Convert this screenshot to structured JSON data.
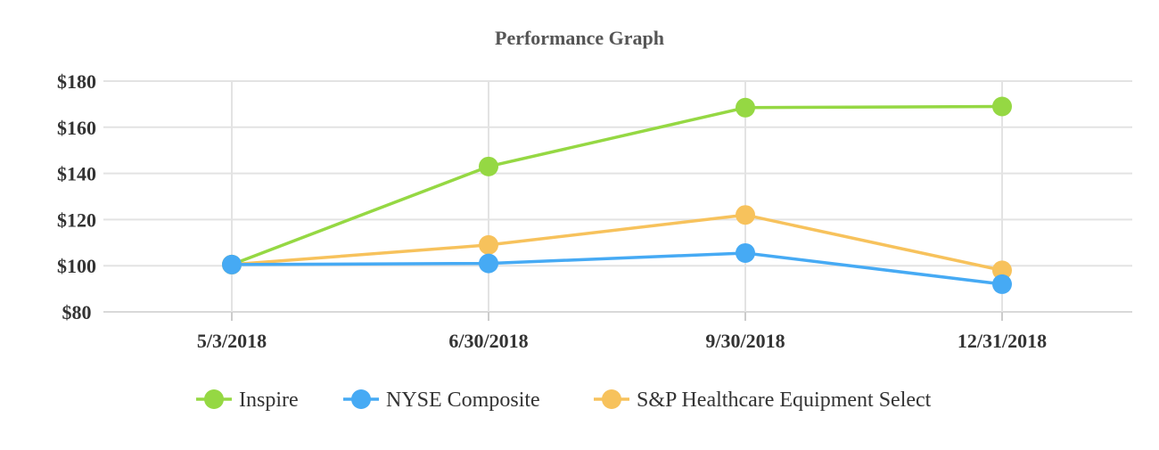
{
  "chart_data": {
    "type": "line",
    "title": "Performance Graph",
    "xlabel": "",
    "ylabel": "",
    "categories": [
      "5/3/2018",
      "6/30/2018",
      "9/30/2018",
      "12/31/2018"
    ],
    "y_tick_labels": [
      "$80",
      "$100",
      "$120",
      "$140",
      "$160",
      "$180"
    ],
    "y_ticks": [
      80,
      100,
      120,
      140,
      160,
      180
    ],
    "ylim": [
      80,
      180
    ],
    "grid": true,
    "legend_position": "bottom",
    "series": [
      {
        "name": "Inspire",
        "color": "#95d843",
        "values": [
          100.5,
          143,
          168.5,
          169
        ]
      },
      {
        "name": "NYSE Composite",
        "color": "#46aaf4",
        "values": [
          100.5,
          101,
          105.5,
          92
        ]
      },
      {
        "name": "S&P Healthcare Equipment Select",
        "color": "#f7c25c",
        "values": [
          100.5,
          109,
          122,
          98
        ]
      }
    ]
  }
}
